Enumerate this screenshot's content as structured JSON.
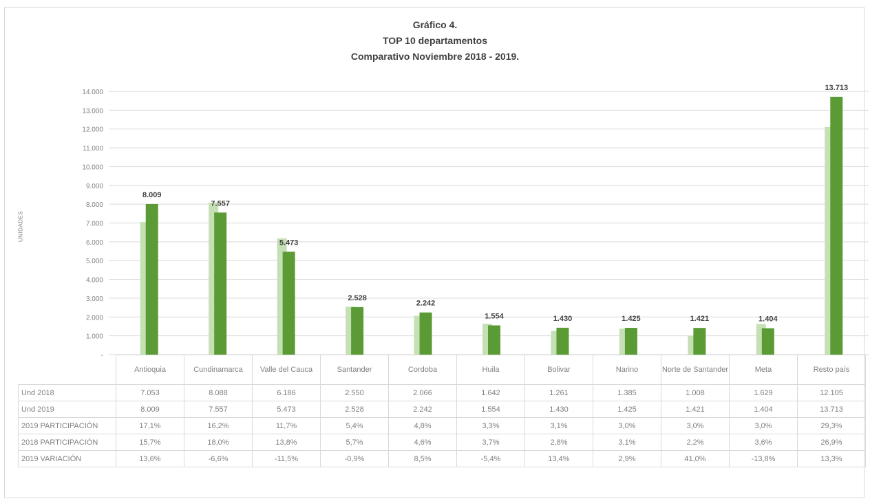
{
  "chart_data": {
    "type": "bar",
    "title": "Gráfico 4.",
    "subtitle": "TOP 10 departamentos",
    "subtitle2": "Comparativo Noviembre 2018 - 2019.",
    "ylabel": "UNIDADES",
    "ylim": [
      0,
      14000
    ],
    "yticks": [
      "-",
      "1.000",
      "2.000",
      "3.000",
      "4.000",
      "5.000",
      "6.000",
      "7.000",
      "8.000",
      "9.000",
      "10.000",
      "11.000",
      "12.000",
      "13.000",
      "14.000"
    ],
    "categories": [
      "Antioquia",
      "Cundinamarca",
      "Valle del Cauca",
      "Santander",
      "Cordoba",
      "Huila",
      "Bolivar",
      "Narino",
      "Norte de Santander",
      "Meta",
      "Resto país"
    ],
    "series": [
      {
        "name": "Und 2018",
        "color": "#c5e0b4",
        "values": [
          7053,
          8088,
          6186,
          2550,
          2066,
          1642,
          1261,
          1385,
          1008,
          1629,
          12105
        ]
      },
      {
        "name": "Und 2019",
        "color": "#5b9b35",
        "values": [
          8009,
          7557,
          5473,
          2528,
          2242,
          1554,
          1430,
          1425,
          1421,
          1404,
          13713
        ]
      }
    ],
    "data_labels_2019": [
      "8.009",
      "7.557",
      "5.473",
      "2.528",
      "2.242",
      "1.554",
      "1.430",
      "1.425",
      "1.421",
      "1.404",
      "13.713"
    ],
    "grid": true,
    "table": {
      "rows": [
        {
          "label": "Und 2018",
          "cells": [
            "7.053",
            "8.088",
            "6.186",
            "2.550",
            "2.066",
            "1.642",
            "1.261",
            "1.385",
            "1.008",
            "1.629",
            "12.105"
          ]
        },
        {
          "label": "Und 2019",
          "cells": [
            "8.009",
            "7.557",
            "5.473",
            "2.528",
            "2.242",
            "1.554",
            "1.430",
            "1.425",
            "1.421",
            "1.404",
            "13.713"
          ]
        },
        {
          "label": "2019 PARTICIPACIÓN",
          "cells": [
            "17,1%",
            "16,2%",
            "11,7%",
            "5,4%",
            "4,8%",
            "3,3%",
            "3,1%",
            "3,0%",
            "3,0%",
            "3,0%",
            "29,3%"
          ]
        },
        {
          "label": "2018 PARTICIPACIÓN",
          "cells": [
            "15,7%",
            "18,0%",
            "13,8%",
            "5,7%",
            "4,6%",
            "3,7%",
            "2,8%",
            "3,1%",
            "2,2%",
            "3,6%",
            "26,9%"
          ]
        },
        {
          "label": "2019 VARIACIÓN",
          "cells": [
            "13,6%",
            "-6,6%",
            "-11,5%",
            "-0,9%",
            "8,5%",
            "-5,4%",
            "13,4%",
            "2,9%",
            "41,0%",
            "-13,8%",
            "13,3%"
          ]
        }
      ]
    }
  }
}
